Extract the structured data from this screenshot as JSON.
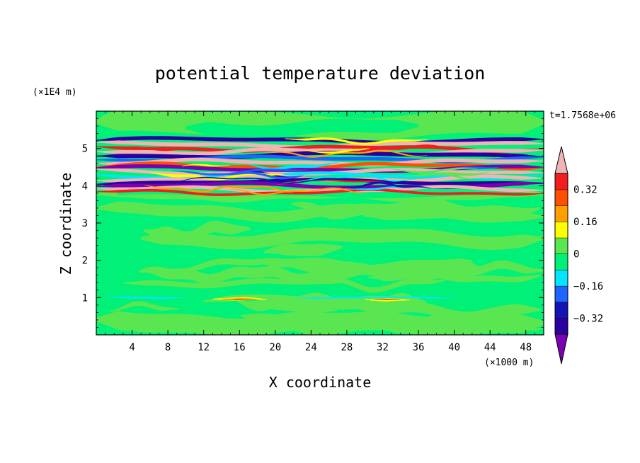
{
  "chart_data": {
    "type": "heatmap",
    "title": "potential temperature deviation",
    "time_label": "t=1.7568e+06",
    "xlabel": "X coordinate",
    "ylabel": "Z coordinate",
    "x_unit": "(×1000 m)",
    "y_unit": "(×1E4 m)",
    "xlim": [
      0,
      50
    ],
    "ylim": [
      0,
      6
    ],
    "x_ticks": [
      4,
      8,
      12,
      16,
      20,
      24,
      28,
      32,
      36,
      40,
      44,
      48
    ],
    "y_ticks": [
      1,
      2,
      3,
      4,
      5
    ],
    "colorbar": {
      "levels": [
        -0.48,
        -0.4,
        -0.32,
        -0.24,
        -0.16,
        -0.08,
        0,
        0.08,
        0.16,
        0.24,
        0.32,
        0.4
      ],
      "colors": [
        "#7b00b4",
        "#2b00a0",
        "#1414b4",
        "#1e64ff",
        "#00e6ff",
        "#00f078",
        "#5ae650",
        "#ffff00",
        "#ffa000",
        "#ff5000",
        "#f01e1e",
        "#f0b4b4"
      ],
      "tick_labels": [
        "0.32",
        "0.16",
        "0",
        "−0.16",
        "−0.32"
      ],
      "tick_values": [
        0.32,
        0.16,
        0,
        -0.16,
        -0.32
      ]
    },
    "bands": [
      {
        "z0": 0.0,
        "z1": 3.7,
        "value": 0.0,
        "note": "near-neutral, mostly green/light-green"
      },
      {
        "z0": 3.7,
        "z1": 5.3,
        "value": 0.4,
        "note": "strongly layered positive/negative bands"
      },
      {
        "z0": 5.3,
        "z1": 6.0,
        "value": 0.0,
        "note": "near-neutral"
      }
    ]
  }
}
